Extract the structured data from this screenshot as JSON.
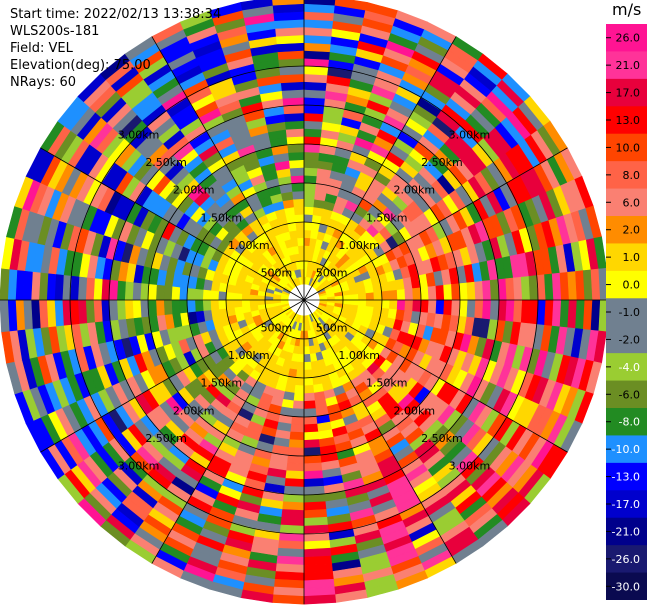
{
  "header": {
    "start_time_label": "Start time:",
    "start_time": "2022/02/13 13:38:34",
    "site": "WLS200s-181",
    "field_label": "Field:",
    "field": "VEL",
    "elevation_label": "Elevation(deg):",
    "elevation": "75.00",
    "nrays_label": "NRays:",
    "nrays": "60"
  },
  "colorbar": {
    "unit": "m/s",
    "ticks": [
      "26.0",
      "21.0",
      "17.0",
      "13.0",
      "10.0",
      "8.0",
      "6.0",
      "2.0",
      "1.0",
      "0.0",
      "-1.0",
      "-2.0",
      "-4.0",
      "-6.0",
      "-8.0",
      "-10.0",
      "-13.0",
      "-17.0",
      "-21.0",
      "-26.0",
      "-30.0"
    ],
    "colors": [
      "#ff1493",
      "#ff3399",
      "#e8003c",
      "#ff0000",
      "#ff4500",
      "#ff6347",
      "#fa8072",
      "#ff8c00",
      "#ffd700",
      "#ffff00",
      "#708090",
      "#708090",
      "#9acd32",
      "#6b8e23",
      "#228b22",
      "#1e90ff",
      "#0000ff",
      "#0000cd",
      "#00008b",
      "#191970",
      "#0a0a50"
    ]
  },
  "chart_data": {
    "type": "heatmap",
    "projection": "polar-ppi",
    "field": "VEL",
    "units": "m/s",
    "nrays": 60,
    "range_rings": [
      {
        "label": "500m",
        "km": 0.5
      },
      {
        "label": "1.00km",
        "km": 1.0
      },
      {
        "label": "1.50km",
        "km": 1.5
      },
      {
        "label": "2.00km",
        "km": 2.0
      },
      {
        "label": "2.50km",
        "km": 2.5
      },
      {
        "label": "3.00km",
        "km": 3.0
      }
    ],
    "max_range_km": 3.9,
    "blank_range_km": 0.2,
    "vmin": -30,
    "vmax": 30,
    "gate_km": 0.1,
    "pattern_seed": 181
  }
}
